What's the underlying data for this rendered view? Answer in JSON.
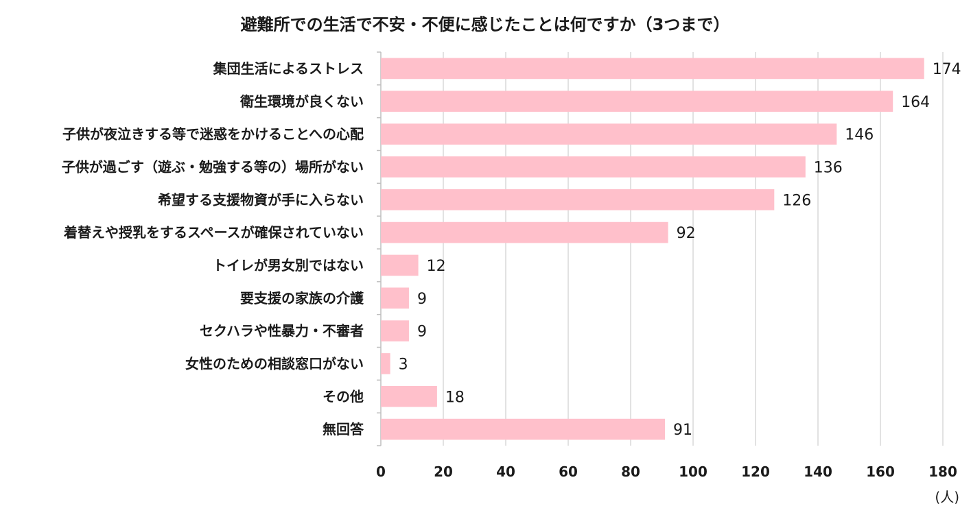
{
  "chart_data": {
    "type": "bar",
    "orientation": "horizontal",
    "title": "避難所での生活で不安・不便に感じたことは何ですか（3つまで）",
    "unit_label": "(人)",
    "categories": [
      "集団生活によるストレス",
      "衛生環境が良くない",
      "子供が夜泣きする等で迷惑をかけることへの心配",
      "子供が過ごす（遊ぶ・勉強する等の）場所がない",
      "希望する支援物資が手に入らない",
      "着替えや授乳をするスペースが確保されていない",
      "トイレが男女別ではない",
      "要支援の家族の介護",
      "セクハラや性暴力・不審者",
      "女性のための相談窓口がない",
      "その他",
      "無回答"
    ],
    "values": [
      174,
      164,
      146,
      136,
      126,
      92,
      12,
      9,
      9,
      3,
      18,
      91
    ],
    "xlim": [
      0,
      180
    ],
    "xticks": [
      "0",
      "20",
      "40",
      "60",
      "80",
      "100",
      "120",
      "140",
      "160",
      "180"
    ],
    "grid": true,
    "bar_color": "#ffc0cb",
    "grid_color": "#d9d9d9",
    "axis_color": "#bfbfbf"
  }
}
